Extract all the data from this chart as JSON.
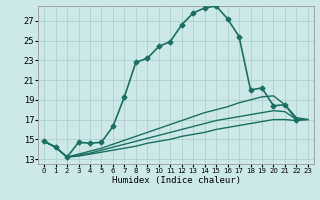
{
  "title": "",
  "xlabel": "Humidex (Indice chaleur)",
  "background_color": "#cce8e8",
  "grid_color": "#b0d0d0",
  "line_color": "#1a7060",
  "xlim": [
    -0.5,
    23.5
  ],
  "ylim": [
    12.5,
    28.5
  ],
  "xticks": [
    0,
    1,
    2,
    3,
    4,
    5,
    6,
    7,
    8,
    9,
    10,
    11,
    12,
    13,
    14,
    15,
    16,
    17,
    18,
    19,
    20,
    21,
    22,
    23
  ],
  "yticks": [
    13,
    15,
    17,
    19,
    21,
    23,
    25,
    27
  ],
  "series": [
    {
      "x": [
        0,
        1,
        2,
        3,
        4,
        5,
        6,
        7,
        8,
        9,
        10,
        11,
        12,
        13,
        14,
        15,
        16,
        17,
        18,
        19,
        20,
        21,
        22
      ],
      "y": [
        14.8,
        14.2,
        13.2,
        14.7,
        14.6,
        14.7,
        16.3,
        19.3,
        22.8,
        23.2,
        24.4,
        24.9,
        26.6,
        27.8,
        28.3,
        28.5,
        27.2,
        25.4,
        20.0,
        20.2,
        18.4,
        18.5,
        17.0
      ],
      "marker": "D",
      "markersize": 2.5,
      "linewidth": 1.2
    },
    {
      "x": [
        0,
        1,
        2,
        3,
        4,
        5,
        6,
        7,
        8,
        9,
        10,
        11,
        12,
        13,
        14,
        15,
        16,
        17,
        18,
        19,
        20,
        21,
        22,
        23
      ],
      "y": [
        14.8,
        14.2,
        13.2,
        13.5,
        13.8,
        14.1,
        14.5,
        14.9,
        15.3,
        15.7,
        16.1,
        16.5,
        16.9,
        17.3,
        17.7,
        18.0,
        18.3,
        18.7,
        19.0,
        19.3,
        19.4,
        18.5,
        17.2,
        17.0
      ],
      "marker": null,
      "linewidth": 1.0
    },
    {
      "x": [
        0,
        1,
        2,
        3,
        4,
        5,
        6,
        7,
        8,
        9,
        10,
        11,
        12,
        13,
        14,
        15,
        16,
        17,
        18,
        19,
        20,
        21,
        22,
        23
      ],
      "y": [
        14.8,
        14.2,
        13.2,
        13.4,
        13.6,
        13.9,
        14.2,
        14.5,
        14.8,
        15.1,
        15.4,
        15.7,
        16.0,
        16.3,
        16.6,
        16.9,
        17.1,
        17.3,
        17.5,
        17.7,
        17.9,
        17.8,
        17.0,
        17.0
      ],
      "marker": null,
      "linewidth": 1.0
    },
    {
      "x": [
        0,
        1,
        2,
        3,
        4,
        5,
        6,
        7,
        8,
        9,
        10,
        11,
        12,
        13,
        14,
        15,
        16,
        17,
        18,
        19,
        20,
        21,
        22,
        23
      ],
      "y": [
        14.8,
        14.2,
        13.2,
        13.3,
        13.5,
        13.7,
        13.9,
        14.1,
        14.3,
        14.6,
        14.8,
        15.0,
        15.3,
        15.5,
        15.7,
        16.0,
        16.2,
        16.4,
        16.6,
        16.8,
        17.0,
        17.0,
        16.9,
        17.0
      ],
      "marker": null,
      "linewidth": 1.0
    }
  ]
}
